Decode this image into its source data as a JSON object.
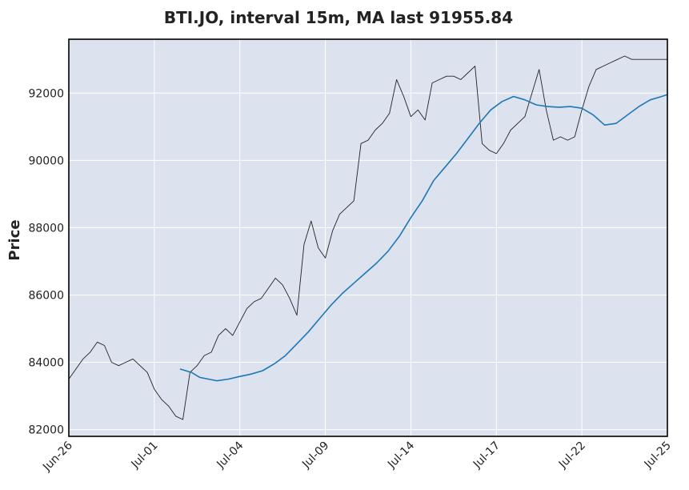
{
  "chart_data": {
    "type": "line",
    "title": "BTI.JO, interval 15m, MA last 91955.84",
    "ylabel": "Price",
    "xlabel": "",
    "ylim": [
      81800,
      93600
    ],
    "yticks": [
      82000,
      84000,
      86000,
      88000,
      90000,
      92000
    ],
    "xlim": [
      0,
      21
    ],
    "xticks": [
      {
        "pos": 0,
        "label": "Jun-26"
      },
      {
        "pos": 3,
        "label": "Jul-01"
      },
      {
        "pos": 6,
        "label": "Jul-04"
      },
      {
        "pos": 9,
        "label": "Jul-09"
      },
      {
        "pos": 12,
        "label": "Jul-14"
      },
      {
        "pos": 15,
        "label": "Jul-17"
      },
      {
        "pos": 18,
        "label": "Jul-22"
      },
      {
        "pos": 21,
        "label": "Jul-25"
      }
    ],
    "grid": true,
    "series": [
      {
        "name": "",
        "color": "#222222",
        "x": [
          0,
          0.25,
          0.5,
          0.75,
          1.0,
          1.25,
          1.5,
          1.75,
          2.0,
          2.25,
          2.5,
          2.75,
          3.0,
          3.25,
          3.5,
          3.75,
          4.0,
          4.25,
          4.5,
          4.75,
          5.0,
          5.25,
          5.5,
          5.75,
          6.0,
          6.25,
          6.5,
          6.75,
          7.0,
          7.25,
          7.5,
          7.75,
          8.0,
          8.25,
          8.5,
          8.75,
          9.0,
          9.25,
          9.5,
          9.75,
          10.0,
          10.25,
          10.5,
          10.75,
          11.0,
          11.25,
          11.5,
          11.75,
          12.0,
          12.25,
          12.5,
          12.75,
          13.0,
          13.25,
          13.5,
          13.75,
          14.0,
          14.25,
          14.5,
          14.75,
          15.0,
          15.25,
          15.5,
          15.75,
          16.0,
          16.25,
          16.5,
          16.75,
          17.0,
          17.25,
          17.5,
          17.75,
          18.0,
          18.25,
          18.5,
          18.75,
          19.0,
          19.25,
          19.5,
          19.75,
          20.0,
          20.25,
          20.5,
          20.75,
          21.0
        ],
        "values": [
          83500,
          83800,
          84100,
          84300,
          84600,
          84500,
          84000,
          83900,
          84000,
          84100,
          83900,
          83700,
          83200,
          82900,
          82700,
          82400,
          82300,
          83700,
          83900,
          84200,
          84300,
          84800,
          85000,
          84800,
          85200,
          85600,
          85800,
          85900,
          86200,
          86500,
          86300,
          85900,
          85400,
          87500,
          88200,
          87400,
          87100,
          87900,
          88400,
          88600,
          88800,
          90500,
          90600,
          90900,
          91100,
          91400,
          92400,
          91900,
          91300,
          91500,
          91200,
          92300,
          92400,
          92500,
          92500,
          92400,
          92600,
          92800,
          90500,
          90300,
          90200,
          90500,
          90900,
          91100,
          91300,
          92000,
          92700,
          91500,
          90600,
          90700,
          90600,
          90700,
          91500,
          92200,
          92700,
          92800,
          92900,
          93000,
          93100,
          93000,
          93000,
          93000,
          93000,
          93000,
          93000
        ]
      },
      {
        "name": "",
        "color": "#1f77b4",
        "x": [
          3.9,
          4.3,
          4.6,
          4.9,
          5.2,
          5.6,
          6.0,
          6.4,
          6.8,
          7.2,
          7.6,
          8.0,
          8.4,
          8.8,
          9.2,
          9.6,
          10.0,
          10.4,
          10.8,
          11.2,
          11.6,
          12.0,
          12.4,
          12.8,
          13.2,
          13.6,
          14.0,
          14.4,
          14.8,
          15.2,
          15.6,
          16.0,
          16.4,
          16.8,
          17.2,
          17.6,
          18.0,
          18.4,
          18.8,
          19.2,
          19.6,
          20.0,
          20.4,
          20.8,
          21.0
        ],
        "values": [
          83800,
          83700,
          83550,
          83500,
          83450,
          83500,
          83580,
          83650,
          83750,
          83950,
          84200,
          84550,
          84900,
          85300,
          85700,
          86050,
          86350,
          86650,
          86950,
          87300,
          87750,
          88300,
          88800,
          89400,
          89800,
          90200,
          90650,
          91100,
          91500,
          91750,
          91900,
          91800,
          91650,
          91600,
          91580,
          91600,
          91550,
          91350,
          91050,
          91100,
          91350,
          91600,
          91800,
          91900,
          91955
        ]
      }
    ]
  }
}
